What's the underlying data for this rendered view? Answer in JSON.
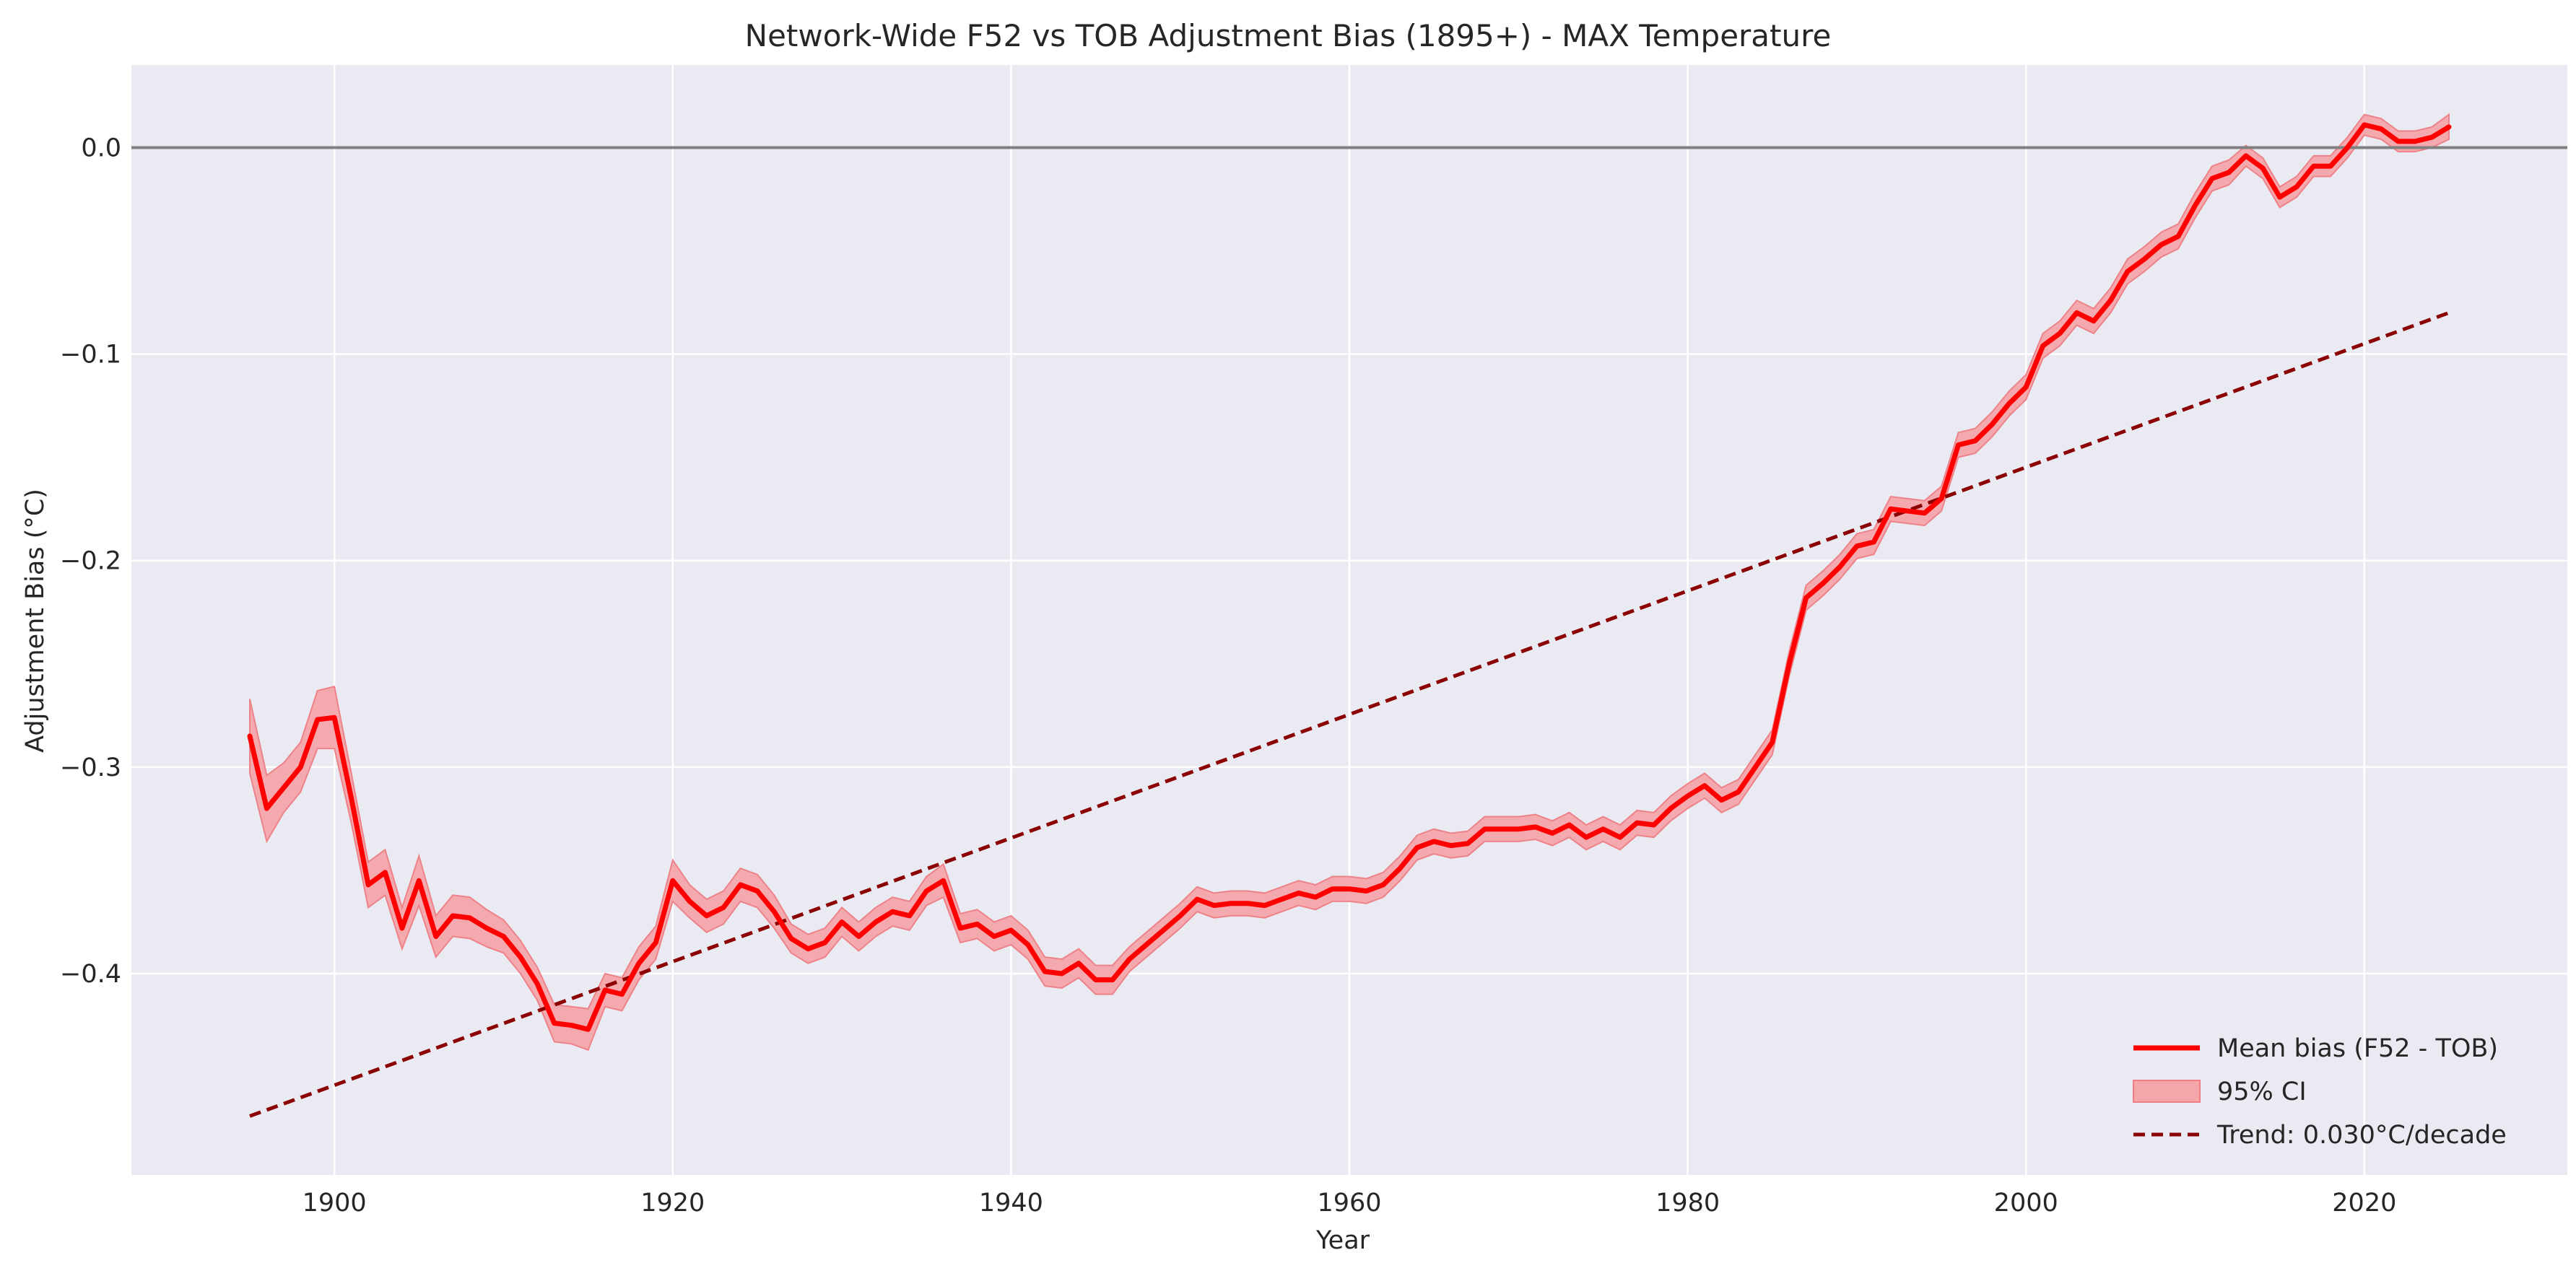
{
  "chart_data": {
    "type": "line",
    "title": "Network-Wide F52 vs TOB Adjustment Bias (1895+) - MAX Temperature",
    "xlabel": "Year",
    "ylabel": "Adjustment Bias (°C)",
    "xlim": [
      1888,
      2032
    ],
    "ylim": [
      -0.4975,
      0.04
    ],
    "x_ticks": [
      1900,
      1920,
      1940,
      1960,
      1980,
      2000,
      2020
    ],
    "y_ticks": [
      0.0,
      -0.1,
      -0.2,
      -0.3,
      -0.4
    ],
    "y_tick_labels": [
      "0.0",
      "−0.1",
      "−0.2",
      "−0.3",
      "−0.4"
    ],
    "grid": true,
    "reference_line": {
      "y": 0.0,
      "color": "#808080"
    },
    "legend_position": "bottom-right",
    "colors": {
      "background": "#eaeaf2",
      "grid": "#ffffff",
      "mean": "#ff0000",
      "ci_fill": "#f4a6aa",
      "ci_edge": "#ef7d84",
      "trend": "#8b0000"
    },
    "legend": [
      {
        "label": "Mean bias (F52 - TOB)",
        "style": "line"
      },
      {
        "label": "95% CI",
        "style": "fill"
      },
      {
        "label": "Trend: 0.030°C/decade",
        "style": "dashed"
      }
    ],
    "mean_series": {
      "name": "Mean bias (F52 - TOB)",
      "x": [
        1895,
        1896,
        1897,
        1898,
        1899,
        1900,
        1901,
        1902,
        1903,
        1904,
        1905,
        1906,
        1907,
        1908,
        1909,
        1910,
        1911,
        1912,
        1913,
        1914,
        1915,
        1916,
        1917,
        1918,
        1919,
        1920,
        1921,
        1922,
        1923,
        1924,
        1925,
        1926,
        1927,
        1928,
        1929,
        1930,
        1931,
        1932,
        1933,
        1934,
        1935,
        1936,
        1937,
        1938,
        1939,
        1940,
        1941,
        1942,
        1943,
        1944,
        1945,
        1946,
        1947,
        1948,
        1949,
        1950,
        1951,
        1952,
        1953,
        1954,
        1955,
        1956,
        1957,
        1958,
        1959,
        1960,
        1961,
        1962,
        1963,
        1964,
        1965,
        1966,
        1967,
        1968,
        1969,
        1970,
        1971,
        1972,
        1973,
        1974,
        1975,
        1976,
        1977,
        1978,
        1979,
        1980,
        1981,
        1982,
        1983,
        1984,
        1985,
        1986,
        1987,
        1988,
        1989,
        1990,
        1991,
        1992,
        1993,
        1994,
        1995,
        1996,
        1997,
        1998,
        1999,
        2000,
        2001,
        2002,
        2003,
        2004,
        2005,
        2006,
        2007,
        2008,
        2009,
        2010,
        2011,
        2012,
        2013,
        2014,
        2015,
        2016,
        2017,
        2018,
        2019,
        2020,
        2021,
        2022,
        2023,
        2024,
        2025
      ],
      "y": [
        -0.285,
        -0.32,
        -0.31,
        -0.3,
        -0.277,
        -0.276,
        -0.315,
        -0.357,
        -0.351,
        -0.378,
        -0.355,
        -0.382,
        -0.372,
        -0.373,
        -0.378,
        -0.382,
        -0.392,
        -0.405,
        -0.424,
        -0.425,
        -0.427,
        -0.408,
        -0.41,
        -0.395,
        -0.385,
        -0.355,
        -0.365,
        -0.372,
        -0.368,
        -0.357,
        -0.36,
        -0.37,
        -0.383,
        -0.388,
        -0.385,
        -0.375,
        -0.382,
        -0.375,
        -0.37,
        -0.372,
        -0.36,
        -0.355,
        -0.378,
        -0.376,
        -0.382,
        -0.379,
        -0.386,
        -0.399,
        -0.4,
        -0.395,
        -0.403,
        -0.403,
        -0.393,
        -0.386,
        -0.379,
        -0.372,
        -0.364,
        -0.367,
        -0.366,
        -0.366,
        -0.367,
        -0.364,
        -0.361,
        -0.363,
        -0.359,
        -0.359,
        -0.36,
        -0.357,
        -0.349,
        -0.339,
        -0.336,
        -0.338,
        -0.337,
        -0.33,
        -0.33,
        -0.33,
        -0.329,
        -0.332,
        -0.328,
        -0.334,
        -0.33,
        -0.334,
        -0.327,
        -0.328,
        -0.32,
        -0.314,
        -0.309,
        -0.316,
        -0.312,
        -0.3,
        -0.288,
        -0.25,
        -0.218,
        -0.211,
        -0.203,
        -0.193,
        -0.191,
        -0.175,
        -0.176,
        -0.177,
        -0.17,
        -0.144,
        -0.142,
        -0.134,
        -0.124,
        -0.116,
        -0.096,
        -0.09,
        -0.08,
        -0.084,
        -0.074,
        -0.06,
        -0.054,
        -0.047,
        -0.043,
        -0.028,
        -0.015,
        -0.012,
        -0.004,
        -0.01,
        -0.024,
        -0.019,
        -0.009,
        -0.009,
        0.0,
        0.011,
        0.009,
        0.003,
        0.003,
        0.005,
        0.01
      ]
    },
    "ci_halfwidth": [
      0.018,
      0.016,
      0.012,
      0.012,
      0.014,
      0.015,
      0.012,
      0.011,
      0.011,
      0.01,
      0.012,
      0.01,
      0.01,
      0.01,
      0.009,
      0.008,
      0.008,
      0.008,
      0.009,
      0.009,
      0.01,
      0.008,
      0.008,
      0.008,
      0.008,
      0.01,
      0.008,
      0.008,
      0.008,
      0.008,
      0.008,
      0.008,
      0.007,
      0.007,
      0.007,
      0.007,
      0.007,
      0.007,
      0.007,
      0.007,
      0.007,
      0.008,
      0.007,
      0.007,
      0.007,
      0.007,
      0.007,
      0.007,
      0.007,
      0.007,
      0.007,
      0.007,
      0.006,
      0.006,
      0.006,
      0.006,
      0.006,
      0.006,
      0.006,
      0.006,
      0.006,
      0.006,
      0.006,
      0.006,
      0.006,
      0.006,
      0.006,
      0.006,
      0.006,
      0.006,
      0.006,
      0.006,
      0.006,
      0.006,
      0.006,
      0.006,
      0.006,
      0.006,
      0.006,
      0.006,
      0.006,
      0.006,
      0.006,
      0.006,
      0.006,
      0.006,
      0.006,
      0.006,
      0.006,
      0.006,
      0.006,
      0.006,
      0.006,
      0.006,
      0.006,
      0.006,
      0.006,
      0.006,
      0.006,
      0.006,
      0.006,
      0.006,
      0.006,
      0.006,
      0.006,
      0.006,
      0.006,
      0.006,
      0.006,
      0.006,
      0.006,
      0.006,
      0.006,
      0.006,
      0.006,
      0.006,
      0.006,
      0.006,
      0.005,
      0.005,
      0.005,
      0.005,
      0.005,
      0.005,
      0.005,
      0.005,
      0.005,
      0.005,
      0.005,
      0.005,
      0.006
    ],
    "trend_series": {
      "name": "Trend: 0.030°C/decade",
      "x": [
        1895,
        2025
      ],
      "y": [
        -0.469,
        -0.08
      ]
    }
  }
}
